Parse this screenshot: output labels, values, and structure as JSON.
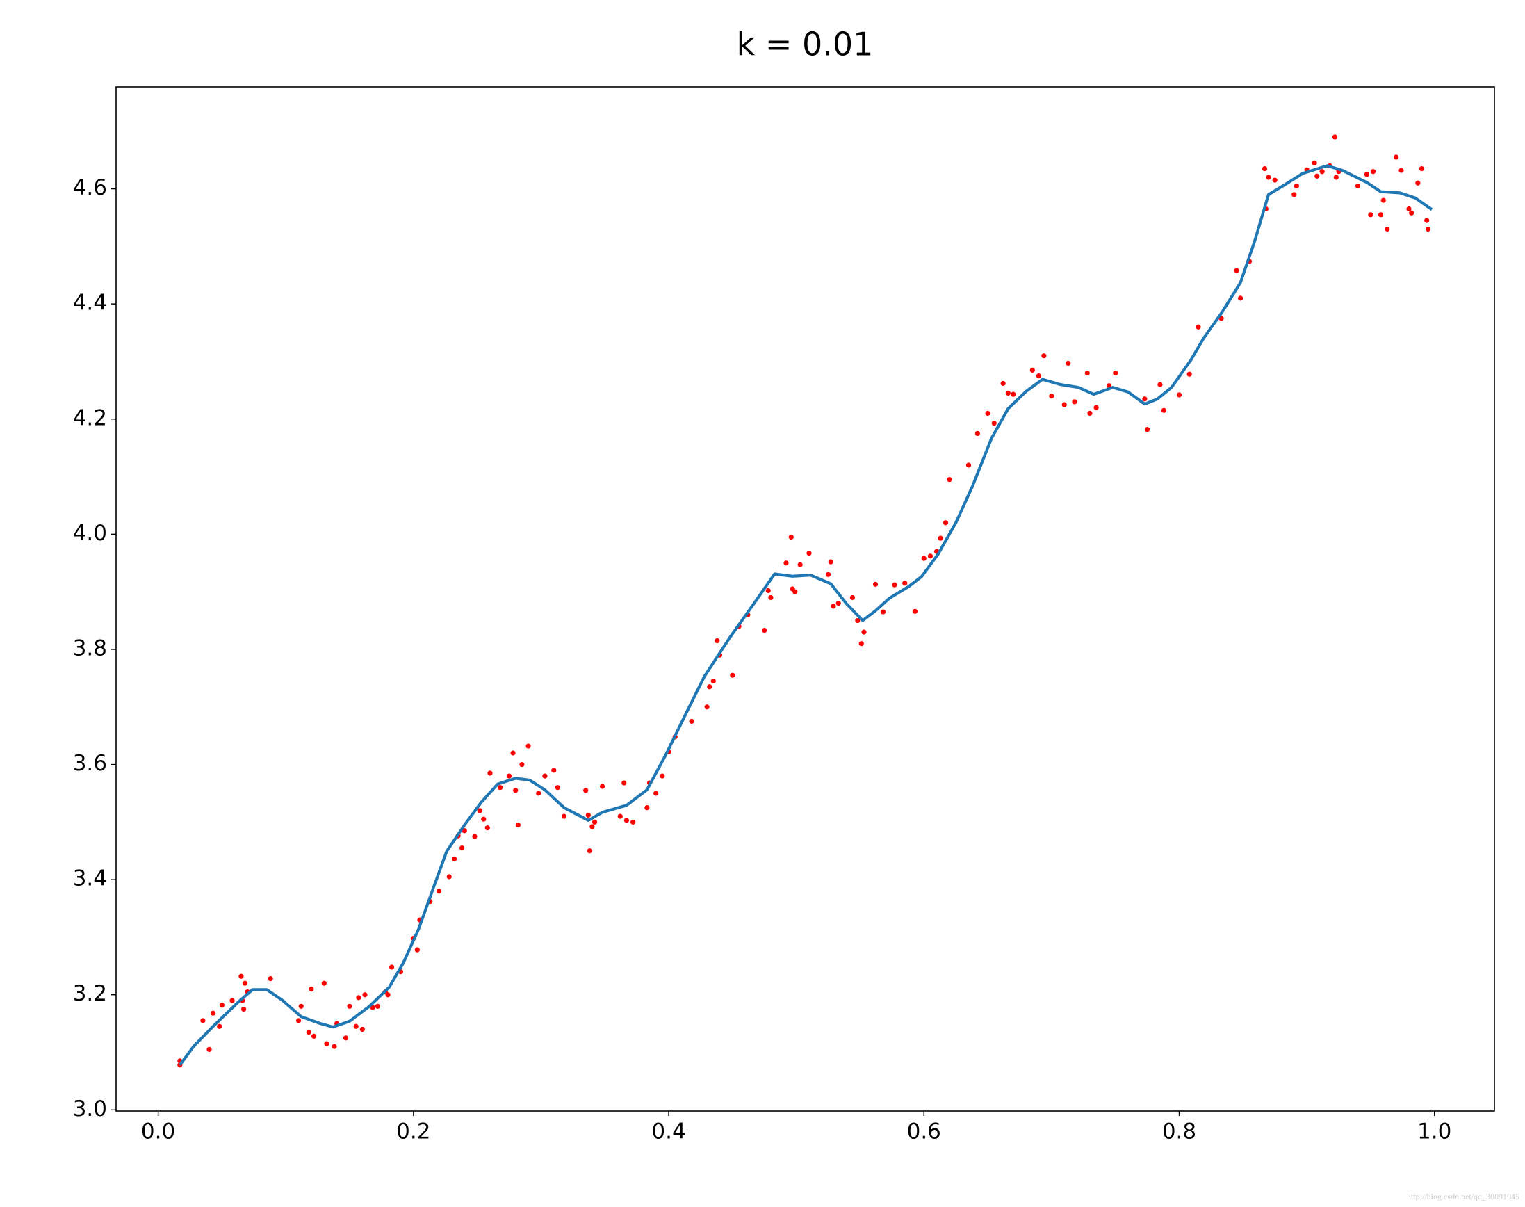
{
  "chart_data": {
    "type": "line",
    "title": "k = 0.01",
    "xlim": [
      -0.033,
      1.047
    ],
    "ylim": [
      2.998,
      4.777
    ],
    "xticks": [
      {
        "value": 0,
        "label": "0.0"
      },
      0.2,
      0.4,
      0.6,
      0.8,
      {
        "value": 1,
        "label": "1.0"
      }
    ],
    "yticks": [
      {
        "value": 3,
        "label": "3.0"
      },
      3.2,
      3.4,
      3.6,
      3.8,
      {
        "value": 4,
        "label": "4.0"
      },
      4.2,
      4.4,
      4.6
    ],
    "grid": false,
    "series": [
      {
        "type": "scatter",
        "color": "#ff0000",
        "x": [
          0.017,
          0.017,
          0.035,
          0.04,
          0.043,
          0.048,
          0.05,
          0.058,
          0.065,
          0.066,
          0.067,
          0.068,
          0.07,
          0.088,
          0.11,
          0.112,
          0.118,
          0.12,
          0.122,
          0.13,
          0.132,
          0.138,
          0.14,
          0.147,
          0.15,
          0.155,
          0.157,
          0.16,
          0.162,
          0.168,
          0.172,
          0.178,
          0.18,
          0.183,
          0.19,
          0.2,
          0.203,
          0.205,
          0.213,
          0.22,
          0.228,
          0.232,
          0.235,
          0.238,
          0.24,
          0.248,
          0.252,
          0.255,
          0.258,
          0.26,
          0.268,
          0.275,
          0.278,
          0.28,
          0.282,
          0.285,
          0.29,
          0.298,
          0.303,
          0.31,
          0.313,
          0.318,
          0.335,
          0.337,
          0.338,
          0.34,
          0.342,
          0.348,
          0.362,
          0.365,
          0.367,
          0.372,
          0.383,
          0.385,
          0.39,
          0.395,
          0.4,
          0.405,
          0.418,
          0.43,
          0.432,
          0.435,
          0.438,
          0.44,
          0.45,
          0.455,
          0.462,
          0.475,
          0.478,
          0.48,
          0.492,
          0.496,
          0.497,
          0.499,
          0.503,
          0.51,
          0.525,
          0.527,
          0.529,
          0.533,
          0.544,
          0.548,
          0.551,
          0.553,
          0.562,
          0.568,
          0.577,
          0.585,
          0.593,
          0.6,
          0.605,
          0.61,
          0.613,
          0.617,
          0.62,
          0.635,
          0.642,
          0.65,
          0.655,
          0.662,
          0.666,
          0.67,
          0.685,
          0.69,
          0.694,
          0.7,
          0.71,
          0.713,
          0.718,
          0.728,
          0.73,
          0.735,
          0.745,
          0.75,
          0.773,
          0.775,
          0.785,
          0.788,
          0.8,
          0.808,
          0.815,
          0.833,
          0.845,
          0.848,
          0.855,
          0.867,
          0.868,
          0.87,
          0.875,
          0.89,
          0.892,
          0.9,
          0.906,
          0.908,
          0.912,
          0.918,
          0.922,
          0.923,
          0.925,
          0.94,
          0.947,
          0.95,
          0.952,
          0.958,
          0.96,
          0.963,
          0.97,
          0.974,
          0.98,
          0.982,
          0.987,
          0.99,
          0.994,
          0.995
        ],
        "values": [
          3.085,
          3.078,
          3.155,
          3.105,
          3.168,
          3.145,
          3.182,
          3.19,
          3.232,
          3.19,
          3.175,
          3.22,
          3.205,
          3.228,
          3.155,
          3.18,
          3.135,
          3.21,
          3.128,
          3.22,
          3.115,
          3.11,
          3.15,
          3.125,
          3.18,
          3.145,
          3.195,
          3.14,
          3.2,
          3.178,
          3.18,
          3.205,
          3.2,
          3.248,
          3.24,
          3.298,
          3.278,
          3.33,
          3.362,
          3.38,
          3.405,
          3.436,
          3.476,
          3.455,
          3.485,
          3.475,
          3.52,
          3.505,
          3.49,
          3.585,
          3.56,
          3.58,
          3.62,
          3.555,
          3.495,
          3.6,
          3.632,
          3.55,
          3.58,
          3.59,
          3.56,
          3.51,
          3.555,
          3.512,
          3.45,
          3.492,
          3.5,
          3.562,
          3.51,
          3.568,
          3.503,
          3.5,
          3.525,
          3.568,
          3.55,
          3.58,
          3.622,
          3.648,
          3.675,
          3.7,
          3.735,
          3.745,
          3.815,
          3.79,
          3.755,
          3.84,
          3.86,
          3.833,
          3.902,
          3.89,
          3.95,
          3.995,
          3.905,
          3.9,
          3.947,
          3.967,
          3.93,
          3.952,
          3.875,
          3.88,
          3.89,
          3.85,
          3.81,
          3.83,
          3.913,
          3.865,
          3.912,
          3.915,
          3.866,
          3.958,
          3.962,
          3.97,
          3.993,
          4.02,
          4.095,
          4.12,
          4.175,
          4.21,
          4.193,
          4.262,
          4.245,
          4.243,
          4.285,
          4.275,
          4.31,
          4.24,
          4.225,
          4.297,
          4.23,
          4.28,
          4.21,
          4.22,
          4.258,
          4.28,
          4.235,
          4.182,
          4.26,
          4.215,
          4.242,
          4.278,
          4.36,
          4.375,
          4.458,
          4.41,
          4.474,
          4.635,
          4.565,
          4.62,
          4.615,
          4.59,
          4.605,
          4.633,
          4.645,
          4.622,
          4.63,
          4.64,
          4.69,
          4.62,
          4.63,
          4.605,
          4.625,
          4.555,
          4.63,
          4.555,
          4.58,
          4.53,
          4.655,
          4.632,
          4.565,
          4.558,
          4.61,
          4.635,
          4.545,
          4.53
        ]
      },
      {
        "type": "line",
        "color": "#1f77b4",
        "x": [
          0.017,
          0.028,
          0.043,
          0.063,
          0.074,
          0.085,
          0.097,
          0.112,
          0.127,
          0.137,
          0.15,
          0.165,
          0.181,
          0.192,
          0.204,
          0.215,
          0.226,
          0.24,
          0.253,
          0.266,
          0.28,
          0.291,
          0.303,
          0.318,
          0.337,
          0.348,
          0.367,
          0.383,
          0.398,
          0.413,
          0.428,
          0.448,
          0.466,
          0.483,
          0.497,
          0.511,
          0.527,
          0.539,
          0.552,
          0.562,
          0.573,
          0.588,
          0.598,
          0.611,
          0.625,
          0.638,
          0.653,
          0.666,
          0.68,
          0.693,
          0.707,
          0.721,
          0.733,
          0.748,
          0.76,
          0.773,
          0.783,
          0.794,
          0.809,
          0.819,
          0.834,
          0.848,
          0.859,
          0.87,
          0.882,
          0.897,
          0.916,
          0.928,
          0.947,
          0.958,
          0.973,
          0.985,
          0.998
        ],
        "values": [
          3.078,
          3.111,
          3.145,
          3.188,
          3.209,
          3.209,
          3.191,
          3.162,
          3.15,
          3.144,
          3.154,
          3.179,
          3.213,
          3.255,
          3.314,
          3.382,
          3.449,
          3.495,
          3.534,
          3.566,
          3.576,
          3.573,
          3.556,
          3.525,
          3.503,
          3.517,
          3.529,
          3.556,
          3.618,
          3.686,
          3.753,
          3.821,
          3.877,
          3.931,
          3.927,
          3.929,
          3.914,
          3.88,
          3.85,
          3.867,
          3.889,
          3.909,
          3.926,
          3.965,
          4.02,
          4.083,
          4.167,
          4.218,
          4.248,
          4.269,
          4.26,
          4.255,
          4.243,
          4.255,
          4.247,
          4.226,
          4.235,
          4.255,
          4.302,
          4.34,
          4.387,
          4.437,
          4.508,
          4.59,
          4.606,
          4.627,
          4.64,
          4.632,
          4.611,
          4.595,
          4.593,
          4.584,
          4.564
        ]
      }
    ]
  },
  "watermark": "http://blog.csdn.net/qq_30091945"
}
